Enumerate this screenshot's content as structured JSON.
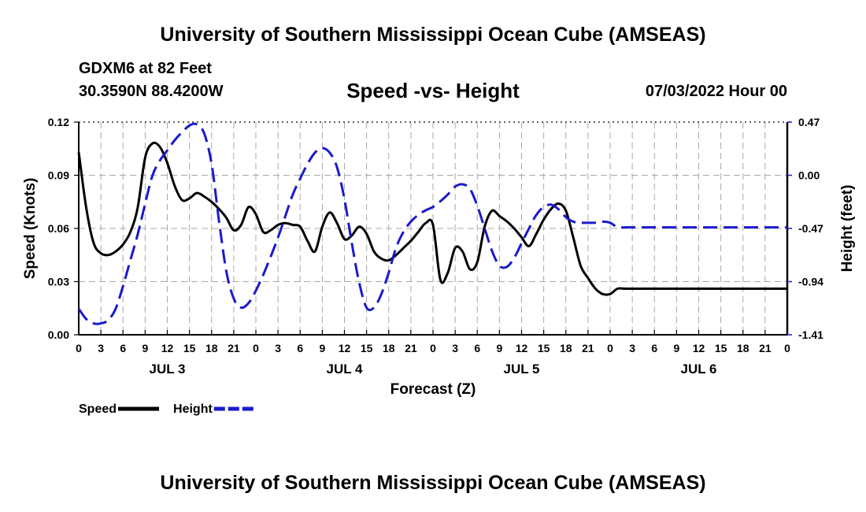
{
  "header": {
    "title": "University of Southern Mississippi Ocean Cube (AMSEAS)",
    "station": "GDXM6 at 82 Feet",
    "coords": "30.3590N  88.4200W",
    "subtitle": "Speed -vs- Height",
    "run": "07/03/2022 Hour 00"
  },
  "footer": {
    "title": "University of Southern Mississippi Ocean Cube (AMSEAS)"
  },
  "chart_data": {
    "type": "line",
    "title": "Speed -vs- Height",
    "xlabel": "Forecast (Z)",
    "ylabel": "Speed (Knots)",
    "y2label": "Height (feet)",
    "xlim": [
      0,
      96
    ],
    "ylim": [
      0,
      0.12
    ],
    "y2lim": [
      -1.41,
      0.47
    ],
    "grid": true,
    "x_tick_labels": [
      "0",
      "3",
      "6",
      "9",
      "12",
      "15",
      "18",
      "21",
      "0",
      "3",
      "6",
      "9",
      "12",
      "15",
      "18",
      "21",
      "0",
      "3",
      "6",
      "9",
      "12",
      "15",
      "18",
      "21",
      "0",
      "3",
      "6",
      "9",
      "12",
      "15",
      "18",
      "21",
      "0"
    ],
    "y_tick_labels": [
      "0.00",
      "0.03",
      "0.06",
      "0.09",
      "0.12"
    ],
    "y2_tick_labels": [
      "-1.41",
      "-0.94",
      "-0.47",
      "0.00",
      "0.47"
    ],
    "day_labels": [
      {
        "label": "JUL 3",
        "hour": 12
      },
      {
        "label": "JUL 4",
        "hour": 36
      },
      {
        "label": "JUL 5",
        "hour": 60
      },
      {
        "label": "JUL 6",
        "hour": 84
      }
    ],
    "series": [
      {
        "name": "Speed",
        "color": "#000000",
        "axis": "left",
        "x": [
          0,
          1,
          2,
          3,
          4,
          5,
          6,
          7,
          8,
          9,
          10,
          11,
          12,
          13,
          14,
          15,
          16,
          17,
          18,
          19,
          20,
          21,
          22,
          23,
          24,
          25,
          26,
          27,
          28,
          29,
          30,
          31,
          32,
          33,
          34,
          35,
          36,
          37,
          38,
          39,
          40,
          41,
          42,
          43,
          44,
          45,
          46,
          47,
          48,
          49,
          50,
          51,
          52,
          53,
          54,
          55,
          56,
          57,
          58,
          59,
          60,
          61,
          62,
          63,
          64,
          65,
          66,
          67,
          68,
          69,
          70,
          71,
          72,
          73,
          74,
          75,
          76,
          77,
          78,
          79,
          80,
          81,
          82,
          83,
          84,
          85,
          86,
          87,
          88,
          89,
          90,
          91,
          92,
          93,
          94,
          95,
          96
        ],
        "values": [
          0.103,
          0.072,
          0.052,
          0.046,
          0.045,
          0.047,
          0.051,
          0.058,
          0.072,
          0.1,
          0.108,
          0.106,
          0.097,
          0.084,
          0.076,
          0.077,
          0.08,
          0.078,
          0.075,
          0.071,
          0.066,
          0.059,
          0.062,
          0.072,
          0.068,
          0.058,
          0.059,
          0.062,
          0.063,
          0.062,
          0.061,
          0.053,
          0.047,
          0.061,
          0.069,
          0.063,
          0.054,
          0.056,
          0.061,
          0.057,
          0.047,
          0.043,
          0.042,
          0.045,
          0.049,
          0.053,
          0.058,
          0.063,
          0.062,
          0.031,
          0.035,
          0.049,
          0.047,
          0.037,
          0.041,
          0.061,
          0.07,
          0.067,
          0.064,
          0.06,
          0.055,
          0.05,
          0.057,
          0.065,
          0.071,
          0.074,
          0.07,
          0.055,
          0.039,
          0.032,
          0.026,
          0.023,
          0.023,
          0.026,
          0.026,
          0.026,
          0.026,
          0.026,
          0.026,
          0.026,
          0.026,
          0.026,
          0.026,
          0.026,
          0.026,
          0.026,
          0.026,
          0.026,
          0.026,
          0.026,
          0.026,
          0.026,
          0.026,
          0.026,
          0.026,
          0.026,
          0.026
        ]
      },
      {
        "name": "Height",
        "color": "#1a1acc",
        "axis": "right",
        "x": [
          0,
          1,
          2,
          3,
          4,
          5,
          6,
          7,
          8,
          9,
          10,
          11,
          12,
          13,
          14,
          15,
          16,
          17,
          18,
          19,
          20,
          21,
          22,
          23,
          24,
          25,
          26,
          27,
          28,
          29,
          30,
          31,
          32,
          33,
          34,
          35,
          36,
          37,
          38,
          39,
          40,
          41,
          42,
          43,
          44,
          45,
          46,
          47,
          48,
          49,
          50,
          51,
          52,
          53,
          54,
          55,
          56,
          57,
          58,
          59,
          60,
          61,
          62,
          63,
          64,
          65,
          66,
          67,
          68,
          69,
          70,
          71,
          72,
          73,
          74,
          75,
          76,
          77,
          78,
          79,
          80,
          81,
          82,
          83,
          84,
          85,
          86,
          87,
          88,
          89,
          90,
          91,
          92,
          93,
          94,
          95,
          96
        ],
        "values": [
          -1.18,
          -1.27,
          -1.31,
          -1.31,
          -1.28,
          -1.18,
          -0.98,
          -0.75,
          -0.52,
          -0.25,
          0.0,
          0.13,
          0.22,
          0.31,
          0.38,
          0.44,
          0.45,
          0.37,
          0.1,
          -0.4,
          -0.85,
          -1.09,
          -1.17,
          -1.13,
          -1.02,
          -0.88,
          -0.72,
          -0.55,
          -0.36,
          -0.17,
          -0.03,
          0.1,
          0.2,
          0.24,
          0.2,
          0.07,
          -0.21,
          -0.6,
          -0.95,
          -1.17,
          -1.17,
          -1.05,
          -0.86,
          -0.64,
          -0.5,
          -0.41,
          -0.35,
          -0.31,
          -0.28,
          -0.23,
          -0.17,
          -0.1,
          -0.08,
          -0.12,
          -0.27,
          -0.47,
          -0.67,
          -0.8,
          -0.81,
          -0.73,
          -0.6,
          -0.47,
          -0.35,
          -0.28,
          -0.26,
          -0.3,
          -0.37,
          -0.41,
          -0.42,
          -0.42,
          -0.42,
          -0.41,
          -0.42,
          -0.46,
          -0.46,
          -0.46,
          -0.46,
          -0.46,
          -0.46,
          -0.46,
          -0.46,
          -0.46,
          -0.46,
          -0.46,
          -0.46,
          -0.46,
          -0.46,
          -0.46,
          -0.46,
          -0.46,
          -0.46,
          -0.46,
          -0.46,
          -0.46,
          -0.46,
          -0.46,
          -0.46
        ]
      }
    ],
    "legend": "bottom-left"
  }
}
